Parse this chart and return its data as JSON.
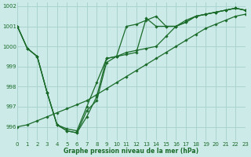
{
  "title": "Graphe pression niveau de la mer (hPa)",
  "bg_color": "#cceae7",
  "grid_color": "#aad4d0",
  "line_color": "#1a6b2a",
  "xlim": [
    0,
    23
  ],
  "ylim": [
    995.3,
    1002.2
  ],
  "yticks": [
    996,
    997,
    998,
    999,
    1000,
    1001,
    1002
  ],
  "xticks": [
    0,
    1,
    2,
    3,
    4,
    5,
    6,
    7,
    8,
    9,
    10,
    11,
    12,
    13,
    14,
    15,
    16,
    17,
    18,
    19,
    20,
    21,
    22,
    23
  ],
  "series": [
    [
      1001.0,
      999.9,
      999.5,
      997.7,
      996.1,
      995.8,
      995.7,
      996.5,
      997.5,
      999.4,
      999.5,
      1001.0,
      1001.1,
      1001.3,
      1001.5,
      1001.0,
      1001.0,
      1001.2,
      1001.5,
      1001.6,
      1001.7,
      1001.8,
      1001.9,
      1001.8
    ],
    [
      1001.0,
      999.9,
      999.5,
      997.7,
      996.1,
      995.8,
      995.7,
      996.8,
      997.3,
      999.2,
      999.5,
      999.6,
      999.7,
      1001.4,
      1001.0,
      1001.0,
      1001.0,
      1001.2,
      1001.5,
      1001.6,
      1001.7,
      1001.8,
      1001.9,
      1001.8
    ],
    [
      1001.0,
      999.9,
      999.5,
      997.7,
      996.1,
      995.9,
      995.8,
      997.0,
      998.2,
      999.4,
      999.5,
      999.7,
      999.8,
      999.9,
      1000.0,
      1000.5,
      1001.0,
      1001.3,
      1001.5,
      1001.6,
      1001.7,
      1001.8,
      1001.9,
      1001.8
    ],
    [
      996.0,
      996.1,
      996.3,
      996.5,
      996.7,
      996.9,
      997.1,
      997.3,
      997.6,
      997.9,
      998.2,
      998.5,
      998.8,
      999.1,
      999.4,
      999.7,
      1000.0,
      1000.3,
      1000.6,
      1000.9,
      1001.1,
      1001.3,
      1001.5,
      1001.6
    ]
  ]
}
